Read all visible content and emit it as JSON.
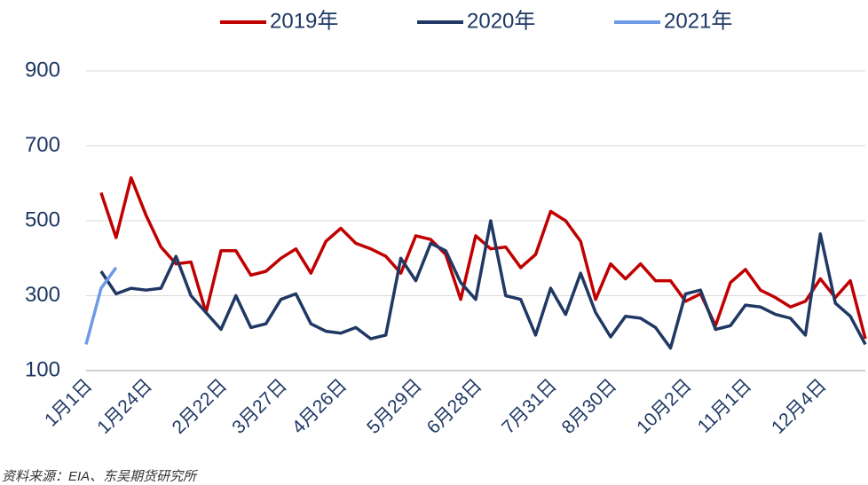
{
  "chart_data": {
    "type": "line",
    "categories": [
      "1月1日",
      null,
      null,
      null,
      "1月24日",
      null,
      null,
      null,
      null,
      "2月22日",
      null,
      null,
      null,
      "3月27日",
      null,
      null,
      null,
      "4月26日",
      null,
      null,
      null,
      null,
      "5月29日",
      null,
      null,
      null,
      "6月28日",
      null,
      null,
      null,
      null,
      "7月31日",
      null,
      null,
      null,
      "8月30日",
      null,
      null,
      null,
      null,
      "10月2日",
      null,
      null,
      null,
      "11月1日",
      null,
      null,
      null,
      null,
      "12月4日",
      null,
      null,
      null
    ],
    "series": [
      {
        "name": "2019年",
        "color": "#c00000",
        "values": [
          null,
          575,
          455,
          615,
          515,
          430,
          385,
          390,
          255,
          420,
          420,
          355,
          365,
          400,
          425,
          360,
          445,
          480,
          440,
          425,
          405,
          360,
          460,
          450,
          410,
          290,
          460,
          425,
          430,
          375,
          410,
          525,
          500,
          445,
          290,
          385,
          345,
          385,
          340,
          340,
          285,
          305,
          220,
          335,
          370,
          315,
          295,
          270,
          285,
          345,
          295,
          340,
          185
        ]
      },
      {
        "name": "2020年",
        "color": "#203864",
        "values": [
          null,
          365,
          305,
          320,
          315,
          320,
          405,
          300,
          255,
          210,
          300,
          215,
          225,
          290,
          305,
          225,
          205,
          200,
          215,
          185,
          195,
          400,
          340,
          440,
          420,
          335,
          290,
          500,
          300,
          290,
          195,
          320,
          250,
          360,
          255,
          190,
          245,
          240,
          215,
          160,
          305,
          315,
          210,
          220,
          275,
          270,
          250,
          240,
          195,
          465,
          280,
          245,
          170
        ]
      },
      {
        "name": "2021年",
        "color": "#6f9ae6",
        "values": [
          170,
          320,
          375,
          null,
          null,
          null,
          null,
          null,
          null,
          null,
          null,
          null,
          null,
          null,
          null,
          null,
          null,
          null,
          null,
          null,
          null,
          null,
          null,
          null,
          null,
          null,
          null,
          null,
          null,
          null,
          null,
          null,
          null,
          null,
          null,
          null,
          null,
          null,
          null,
          null,
          null,
          null,
          null,
          null,
          null,
          null,
          null,
          null,
          null,
          null,
          null,
          null,
          null
        ]
      }
    ],
    "ylim": [
      100,
      900
    ],
    "yticks": [
      100,
      300,
      500,
      700,
      900
    ],
    "grid": true,
    "legend": "top",
    "source": "资料来源：EIA、东吴期货研究所"
  }
}
